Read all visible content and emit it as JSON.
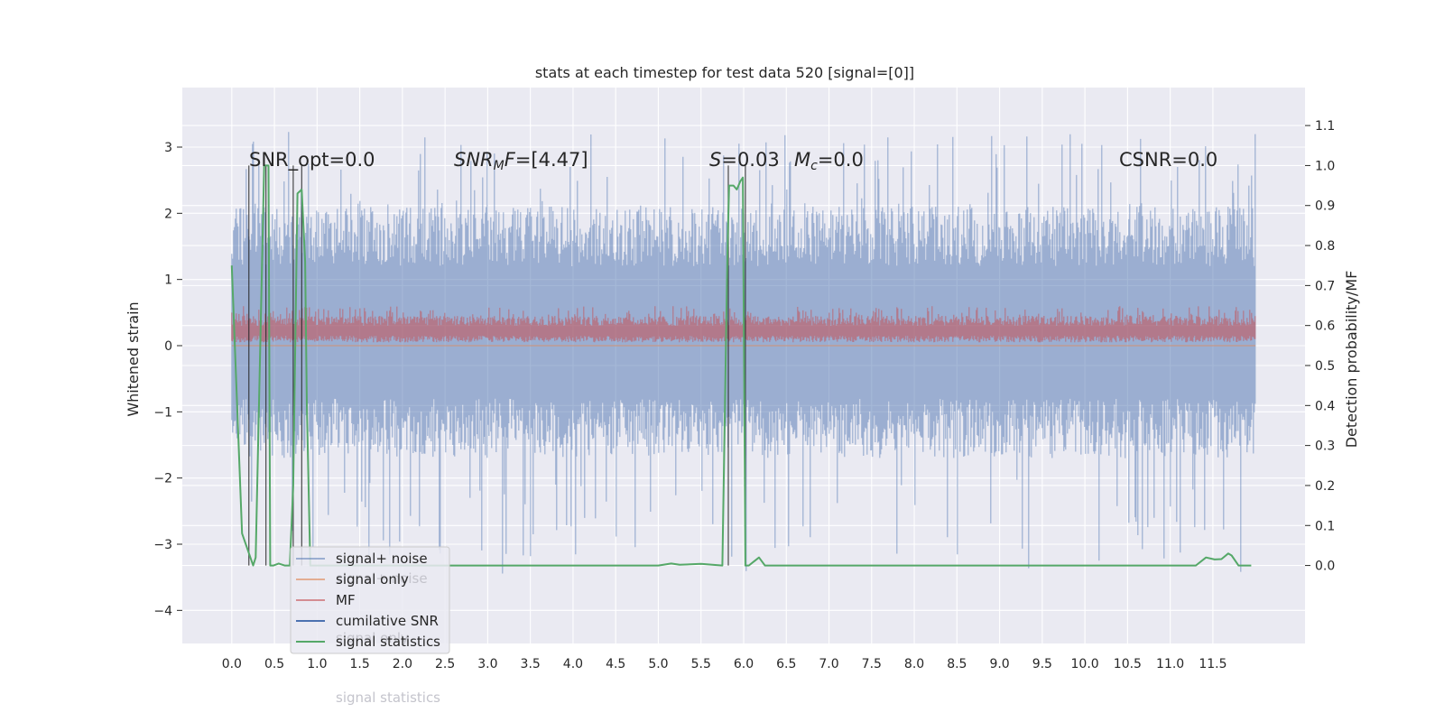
{
  "chart_data": {
    "type": "line",
    "title": "stats at each timestep for test data 520 [signal=[0]]",
    "xlabel": "",
    "ylabel": "Whitened strain",
    "y2label": "Detection probability/MF",
    "xlim": [
      -0.58,
      12.58
    ],
    "ylim": [
      -4.5,
      3.9
    ],
    "y2lim": [
      -0.195,
      1.195
    ],
    "grid": true,
    "x_ticks": [
      "0.0",
      "0.5",
      "1.0",
      "1.5",
      "2.0",
      "2.5",
      "3.0",
      "3.5",
      "4.0",
      "4.5",
      "5.0",
      "5.5",
      "6.0",
      "6.5",
      "7.0",
      "7.5",
      "8.0",
      "8.5",
      "9.0",
      "9.5",
      "10.0",
      "10.5",
      "11.0",
      "11.5"
    ],
    "y_ticks": [
      "−4",
      "−3",
      "−2",
      "−1",
      "0",
      "1",
      "2",
      "3"
    ],
    "y2_ticks": [
      "0.0",
      "0.1",
      "0.2",
      "0.3",
      "0.4",
      "0.5",
      "0.6",
      "0.7",
      "0.8",
      "0.9",
      "1.0",
      "1.1"
    ],
    "annotations": {
      "snr_opt": "SNR_opt=0.0",
      "snr_mf_sym": "SNR",
      "snr_mf_sub": "M",
      "snr_mf_sym2": "F",
      "snr_mf_val": "=[4.47]",
      "s_sym": "S",
      "s_val": "=0.03",
      "mc_sym": "M",
      "mc_sub": "c",
      "mc_val": "=0.0",
      "csnr": "CSNR=0.0"
    },
    "series": [
      {
        "name": "signal+ noise",
        "color": "#4c72b0",
        "role": "noise band",
        "x_range": [
          0.0,
          12.0
        ],
        "range": [
          -1.7,
          2.1
        ],
        "spikes_max": 3.55,
        "spikes_min": -3.55
      },
      {
        "name": "signal only",
        "color": "#dd8452",
        "values_note": "flat at zero"
      },
      {
        "name": "MF",
        "color": "#c44e52",
        "x_range": [
          0.0,
          12.0
        ],
        "range": [
          0.05,
          0.6
        ]
      },
      {
        "name": "cumilative SNR",
        "color": "#4c72b0"
      },
      {
        "name": "signal statistics",
        "color": "#55a868",
        "axis": "right",
        "x": [
          0.0,
          0.12,
          0.25,
          0.28,
          0.38,
          0.43,
          0.45,
          0.49,
          0.55,
          0.62,
          0.68,
          0.72,
          0.77,
          0.82,
          0.86,
          0.88,
          0.92,
          0.96,
          1.0,
          1.5,
          2.0,
          3.0,
          4.0,
          4.5,
          5.0,
          5.15,
          5.25,
          5.5,
          5.75,
          5.81,
          5.83,
          5.88,
          5.92,
          5.96,
          5.99,
          6.02,
          6.06,
          6.12,
          6.18,
          6.25,
          6.35,
          7.0,
          8.0,
          9.0,
          10.0,
          11.0,
          11.3,
          11.42,
          11.52,
          11.6,
          11.68,
          11.72,
          11.8,
          11.9,
          11.95
        ],
        "values": [
          0.75,
          0.08,
          0.0,
          0.02,
          1.0,
          1.0,
          0.0,
          0.0,
          0.005,
          0.0,
          0.0,
          0.2,
          0.93,
          0.94,
          0.76,
          0.4,
          0.0,
          0.0,
          0.0,
          0.0,
          0.0,
          0.0,
          0.0,
          0.0,
          0.0,
          0.005,
          0.002,
          0.004,
          0.0,
          0.78,
          0.95,
          0.95,
          0.94,
          0.96,
          0.97,
          0.0,
          0.0,
          0.01,
          0.02,
          0.0,
          0.0,
          0.0,
          0.0,
          0.0,
          0.0,
          0.0,
          0.0,
          0.02,
          0.015,
          0.016,
          0.03,
          0.025,
          0.0,
          0.0,
          0.0
        ]
      }
    ],
    "vertical_lines_x": [
      0.2,
      0.4,
      0.72,
      0.82,
      5.82,
      6.02
    ],
    "legend": {
      "placement": "lower-left",
      "entries": [
        {
          "label": "signal+ noise",
          "color": "#4c72b0",
          "alpha": 0.5
        },
        {
          "label": "signal only",
          "color": "#dd8452",
          "alpha": 0.6
        },
        {
          "label": "MF",
          "color": "#c44e52",
          "alpha": 0.6
        },
        {
          "label": "cumilative SNR",
          "color": "#4c72b0",
          "alpha": 1.0
        },
        {
          "label": "signal statistics",
          "color": "#55a868",
          "alpha": 1.0
        }
      ],
      "ghost_entries": [
        {
          "label": "signal+ noise"
        },
        {
          "label": "signal only"
        },
        {
          "label": "signal statistics"
        }
      ]
    },
    "colors": {
      "axes_bg": "#eaeaf2",
      "grid": "#ffffff",
      "noise": "#4c72b0",
      "mf": "#c44e52",
      "stat": "#55a868",
      "vline": "#222222"
    }
  }
}
